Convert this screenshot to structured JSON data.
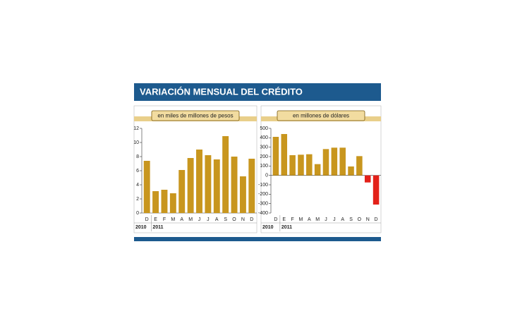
{
  "header": {
    "title": "VARIACIÓN MENSUAL DEL CRÉDITO"
  },
  "chart_data": [
    {
      "type": "bar",
      "subtitle": "en miles de millones de pesos",
      "categories": [
        "D",
        "E",
        "F",
        "M",
        "A",
        "M",
        "J",
        "J",
        "A",
        "S",
        "O",
        "N",
        "D"
      ],
      "years": [
        "2010",
        "2011"
      ],
      "values": [
        7.4,
        3.1,
        3.3,
        2.8,
        6.1,
        7.8,
        9.0,
        8.2,
        7.6,
        10.9,
        8.0,
        5.2,
        7.7
      ],
      "color": "#c8961e",
      "ylim": [
        0,
        12
      ],
      "yticks": [
        0,
        2,
        4,
        6,
        8,
        10,
        12
      ]
    },
    {
      "type": "bar",
      "subtitle": "en millones de dólares",
      "categories": [
        "D",
        "E",
        "F",
        "M",
        "A",
        "M",
        "J",
        "J",
        "A",
        "S",
        "O",
        "N",
        "D"
      ],
      "years": [
        "2010",
        "2011"
      ],
      "values": [
        410,
        440,
        215,
        220,
        225,
        120,
        280,
        295,
        295,
        95,
        205,
        -75,
        -310
      ],
      "color": "#c8961e",
      "negative_color": "#e32119",
      "ylim": [
        -400,
        500
      ],
      "yticks": [
        -400,
        -300,
        -200,
        -100,
        0,
        100,
        200,
        300,
        400,
        500
      ]
    }
  ]
}
